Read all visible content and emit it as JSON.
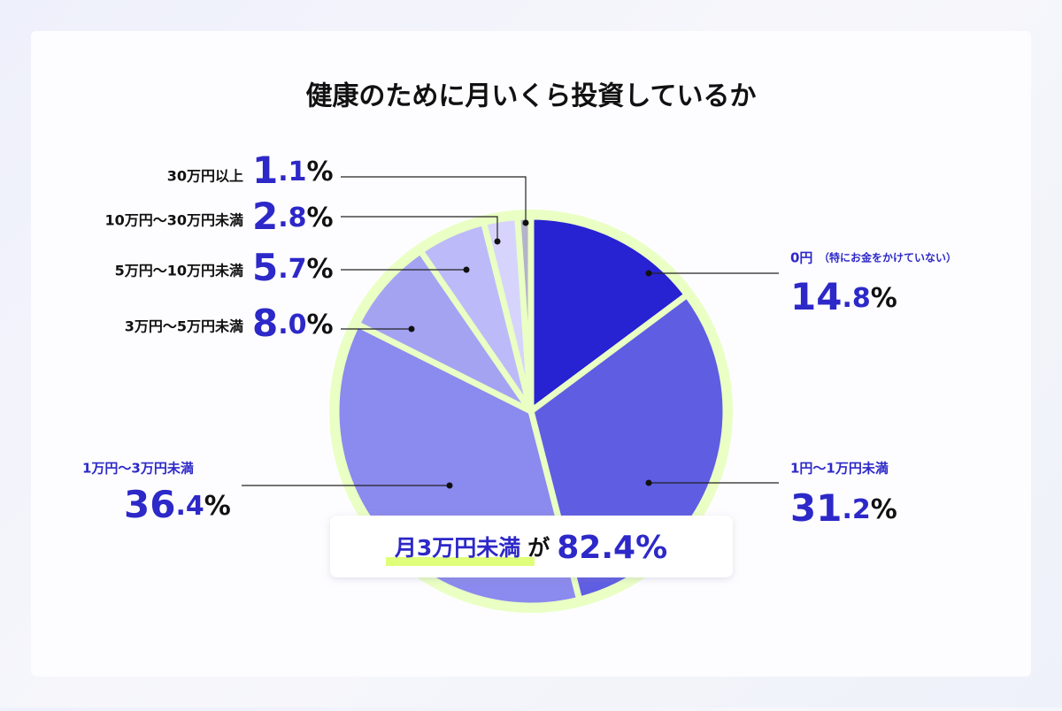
{
  "chart_data": {
    "type": "pie",
    "title": "健康のために月いくら投資しているか",
    "categories": [
      "0円",
      "1円〜1万円未満",
      "1万円〜3万円未満",
      "3万円〜5万円未満",
      "5万円〜10万円未満",
      "10万円〜30万円未満",
      "30万円以上"
    ],
    "category_note": "（特にお金をかけていない）",
    "values": [
      14.8,
      31.2,
      36.4,
      8.0,
      5.7,
      2.8,
      1.1
    ],
    "value_labels": [
      "14.8%",
      "31.2%",
      "36.4%",
      "8.0%",
      "5.7%",
      "2.8%",
      "1.1%"
    ],
    "colors": [
      "#2722d2",
      "#5f5de2",
      "#8b8aee",
      "#a4a3f2",
      "#bcbaf8",
      "#d6d4fc",
      "#b3b3c9"
    ],
    "annotation": {
      "highlight": "月3万円未満",
      "connector": "が",
      "value_label": "82.4%"
    }
  }
}
